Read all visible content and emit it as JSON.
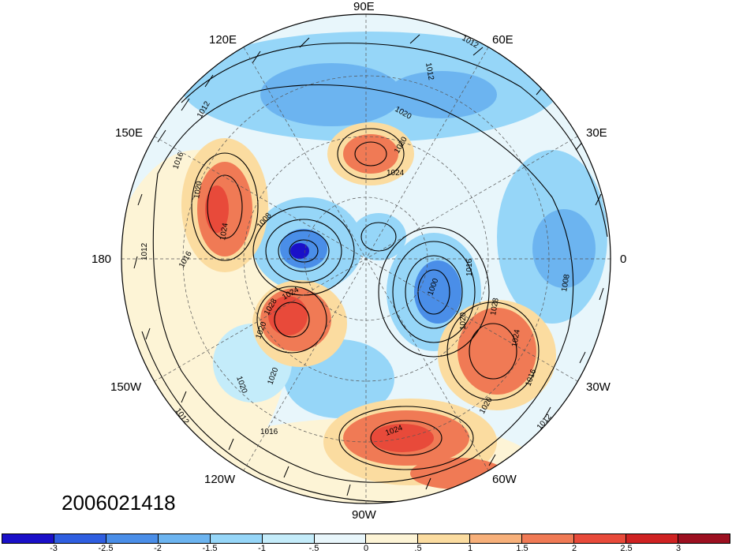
{
  "timestamp": "2006021418",
  "map": {
    "projection": "north-polar-stereographic",
    "lon_labels": {
      "lon_90e": "90E",
      "lon_120e": "120E",
      "lon_60e": "60E",
      "lon_150e": "150E",
      "lon_30e": "30E",
      "lon_180": "180",
      "lon_0": "0",
      "lon_150w": "150W",
      "lon_30w": "30W",
      "lon_120w": "120W",
      "lon_60w": "60W",
      "lon_90w": "90W"
    },
    "isobar_labels": [
      "1012",
      "1016",
      "1020",
      "1024",
      "1028",
      "1008",
      "1000",
      "1012",
      "1016",
      "1020",
      "1024",
      "1020",
      "1016",
      "1012",
      "1024",
      "1028",
      "1020",
      "1016",
      "1012",
      "1008",
      "1012",
      "1020",
      "1024",
      "1020",
      "1016",
      "1020",
      "1012",
      "1020",
      "1024"
    ]
  },
  "colorbar": {
    "tick_labels": [
      "-3",
      "-2.5",
      "-2",
      "-1.5",
      "-1",
      "-.5",
      "0",
      ".5",
      "1",
      "1.5",
      "2",
      "2.5",
      "3"
    ],
    "colors": [
      "#1a10c8",
      "#2f5ee0",
      "#4a8ee8",
      "#6cb4f0",
      "#96d6f8",
      "#c4ecfa",
      "#e8f6fb",
      "#fdf4d6",
      "#fbdca0",
      "#f7b07a",
      "#f07a55",
      "#e84a3a",
      "#cf2222",
      "#9c1020"
    ]
  }
}
